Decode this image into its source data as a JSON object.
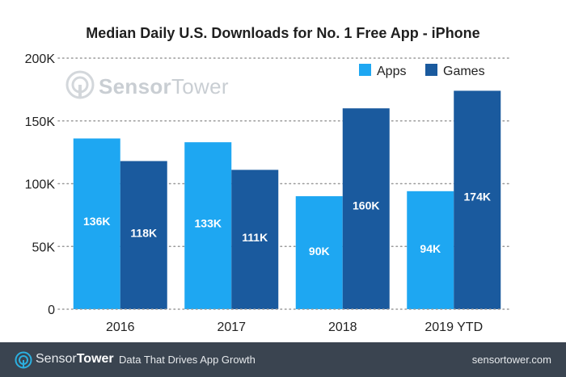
{
  "chart_data": {
    "type": "bar",
    "title": "Median Daily U.S. Downloads for No. 1 Free App - iPhone",
    "categories": [
      "2016",
      "2017",
      "2018",
      "2019 YTD"
    ],
    "series": [
      {
        "name": "Apps",
        "color": "#1ea7f2",
        "values": [
          136000,
          133000,
          90000,
          94000
        ],
        "labels": [
          "136K",
          "133K",
          "90K",
          "94K"
        ]
      },
      {
        "name": "Games",
        "color": "#1a5a9e",
        "values": [
          118000,
          111000,
          160000,
          174000
        ],
        "labels": [
          "118K",
          "111K",
          "160K",
          "174K"
        ]
      }
    ],
    "ylim": [
      0,
      200000
    ],
    "yticks": [
      0,
      50000,
      100000,
      150000,
      200000
    ],
    "ytick_labels": [
      "0",
      "50K",
      "100K",
      "150K",
      "200K"
    ],
    "xlabel": "",
    "ylabel": "",
    "grid": true,
    "legend": "top-right"
  },
  "watermark": {
    "brand_part1": "Sensor",
    "brand_part2": "Tower"
  },
  "footer": {
    "brand_part1": "Sensor",
    "brand_part2": "Tower",
    "tagline": "Data That Drives App Growth",
    "url": "sensortower.com"
  }
}
